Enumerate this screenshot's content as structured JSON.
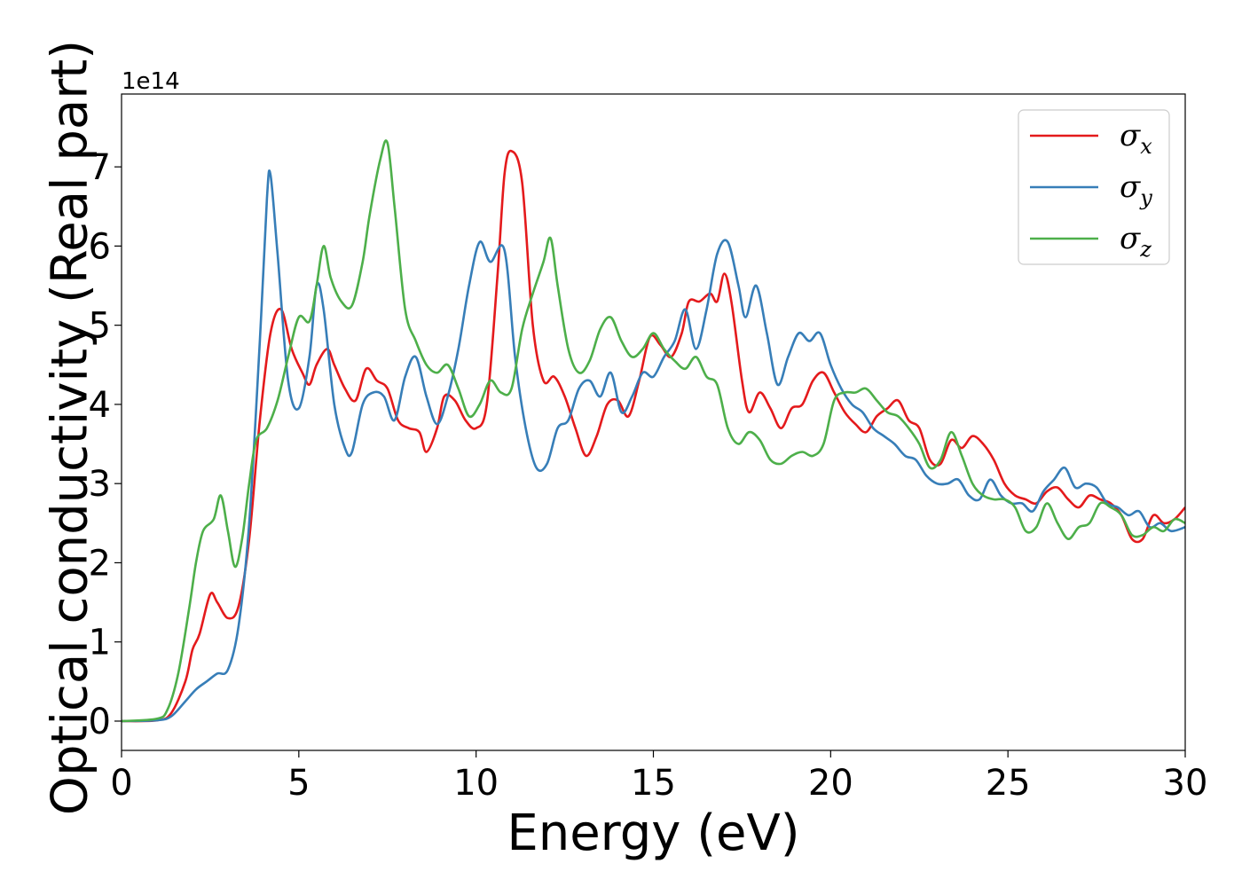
{
  "chart_data": {
    "type": "line",
    "title": "",
    "xlabel": "Energy (eV)",
    "ylabel": "Optical conductivity (Real part)",
    "y_offset_label": "1e14",
    "xlim": [
      0,
      30
    ],
    "ylim": [
      -0.37,
      7.92
    ],
    "y_multiplier": 100000000000000.0,
    "x_ticks": [
      0,
      5,
      10,
      15,
      20,
      25,
      30
    ],
    "y_ticks": [
      0,
      1,
      2,
      3,
      4,
      5,
      6,
      7
    ],
    "grid": false,
    "legend_position": "top-right",
    "series": [
      {
        "name": "σx",
        "symbol": "σ",
        "subscript": "x",
        "color": "#e41a1c",
        "points": [
          [
            0,
            0
          ],
          [
            1,
            0.01
          ],
          [
            1.4,
            0.1
          ],
          [
            1.8,
            0.5
          ],
          [
            2.0,
            0.9
          ],
          [
            2.2,
            1.1
          ],
          [
            2.5,
            1.6
          ],
          [
            2.7,
            1.5
          ],
          [
            3.0,
            1.3
          ],
          [
            3.3,
            1.45
          ],
          [
            3.6,
            2.3
          ],
          [
            3.9,
            3.8
          ],
          [
            4.2,
            4.9
          ],
          [
            4.5,
            5.2
          ],
          [
            4.8,
            4.7
          ],
          [
            5.1,
            4.4
          ],
          [
            5.3,
            4.25
          ],
          [
            5.5,
            4.5
          ],
          [
            5.8,
            4.7
          ],
          [
            6.0,
            4.5
          ],
          [
            6.3,
            4.2
          ],
          [
            6.6,
            4.05
          ],
          [
            6.9,
            4.45
          ],
          [
            7.2,
            4.3
          ],
          [
            7.5,
            4.2
          ],
          [
            7.8,
            3.8
          ],
          [
            8.1,
            3.7
          ],
          [
            8.4,
            3.65
          ],
          [
            8.6,
            3.4
          ],
          [
            8.9,
            3.7
          ],
          [
            9.1,
            4.1
          ],
          [
            9.4,
            4.05
          ],
          [
            9.7,
            3.8
          ],
          [
            10.0,
            3.7
          ],
          [
            10.3,
            4.0
          ],
          [
            10.6,
            5.6
          ],
          [
            10.8,
            6.9
          ],
          [
            11.0,
            7.2
          ],
          [
            11.3,
            6.8
          ],
          [
            11.6,
            5.0
          ],
          [
            11.9,
            4.3
          ],
          [
            12.2,
            4.35
          ],
          [
            12.5,
            4.1
          ],
          [
            12.8,
            3.7
          ],
          [
            13.1,
            3.35
          ],
          [
            13.4,
            3.6
          ],
          [
            13.7,
            4.0
          ],
          [
            14.0,
            4.05
          ],
          [
            14.3,
            3.85
          ],
          [
            14.6,
            4.3
          ],
          [
            14.9,
            4.85
          ],
          [
            15.2,
            4.75
          ],
          [
            15.5,
            4.6
          ],
          [
            15.8,
            4.9
          ],
          [
            16.0,
            5.3
          ],
          [
            16.3,
            5.3
          ],
          [
            16.6,
            5.4
          ],
          [
            16.8,
            5.3
          ],
          [
            17.0,
            5.65
          ],
          [
            17.2,
            5.3
          ],
          [
            17.5,
            4.3
          ],
          [
            17.7,
            3.9
          ],
          [
            18.0,
            4.15
          ],
          [
            18.3,
            3.95
          ],
          [
            18.6,
            3.7
          ],
          [
            18.9,
            3.95
          ],
          [
            19.2,
            4.0
          ],
          [
            19.5,
            4.3
          ],
          [
            19.8,
            4.4
          ],
          [
            20.1,
            4.15
          ],
          [
            20.4,
            3.9
          ],
          [
            20.7,
            3.75
          ],
          [
            21.0,
            3.65
          ],
          [
            21.3,
            3.85
          ],
          [
            21.6,
            3.95
          ],
          [
            21.9,
            4.05
          ],
          [
            22.2,
            3.8
          ],
          [
            22.5,
            3.7
          ],
          [
            22.8,
            3.3
          ],
          [
            23.1,
            3.25
          ],
          [
            23.4,
            3.55
          ],
          [
            23.7,
            3.45
          ],
          [
            24.0,
            3.6
          ],
          [
            24.3,
            3.5
          ],
          [
            24.6,
            3.3
          ],
          [
            24.9,
            3.0
          ],
          [
            25.2,
            2.85
          ],
          [
            25.5,
            2.8
          ],
          [
            25.8,
            2.75
          ],
          [
            26.1,
            2.9
          ],
          [
            26.4,
            2.95
          ],
          [
            26.7,
            2.8
          ],
          [
            27.0,
            2.7
          ],
          [
            27.3,
            2.85
          ],
          [
            27.6,
            2.8
          ],
          [
            27.9,
            2.75
          ],
          [
            28.2,
            2.6
          ],
          [
            28.5,
            2.3
          ],
          [
            28.8,
            2.3
          ],
          [
            29.1,
            2.6
          ],
          [
            29.4,
            2.5
          ],
          [
            29.7,
            2.55
          ],
          [
            30.0,
            2.7
          ]
        ]
      },
      {
        "name": "σy",
        "symbol": "σ",
        "subscript": "y",
        "color": "#377eb8",
        "points": [
          [
            0,
            0
          ],
          [
            1,
            0.01
          ],
          [
            1.4,
            0.06
          ],
          [
            1.8,
            0.25
          ],
          [
            2.1,
            0.4
          ],
          [
            2.4,
            0.5
          ],
          [
            2.7,
            0.6
          ],
          [
            3.0,
            0.65
          ],
          [
            3.3,
            1.2
          ],
          [
            3.6,
            2.5
          ],
          [
            3.9,
            4.8
          ],
          [
            4.1,
            6.6
          ],
          [
            4.2,
            6.9
          ],
          [
            4.4,
            5.9
          ],
          [
            4.7,
            4.3
          ],
          [
            5.0,
            3.95
          ],
          [
            5.3,
            4.6
          ],
          [
            5.5,
            5.5
          ],
          [
            5.7,
            5.2
          ],
          [
            6.0,
            4.0
          ],
          [
            6.3,
            3.45
          ],
          [
            6.5,
            3.4
          ],
          [
            6.8,
            4.0
          ],
          [
            7.1,
            4.15
          ],
          [
            7.4,
            4.1
          ],
          [
            7.7,
            3.8
          ],
          [
            8.0,
            4.35
          ],
          [
            8.3,
            4.6
          ],
          [
            8.6,
            4.1
          ],
          [
            8.9,
            3.75
          ],
          [
            9.2,
            4.1
          ],
          [
            9.5,
            4.7
          ],
          [
            9.8,
            5.5
          ],
          [
            10.1,
            6.05
          ],
          [
            10.4,
            5.8
          ],
          [
            10.8,
            5.95
          ],
          [
            11.1,
            4.6
          ],
          [
            11.4,
            3.7
          ],
          [
            11.7,
            3.2
          ],
          [
            12.0,
            3.25
          ],
          [
            12.3,
            3.7
          ],
          [
            12.6,
            3.8
          ],
          [
            12.9,
            4.2
          ],
          [
            13.2,
            4.3
          ],
          [
            13.5,
            4.1
          ],
          [
            13.8,
            4.4
          ],
          [
            14.1,
            3.9
          ],
          [
            14.4,
            4.1
          ],
          [
            14.7,
            4.4
          ],
          [
            15.0,
            4.35
          ],
          [
            15.3,
            4.6
          ],
          [
            15.6,
            4.8
          ],
          [
            15.9,
            5.2
          ],
          [
            16.2,
            4.7
          ],
          [
            16.5,
            5.2
          ],
          [
            16.8,
            5.9
          ],
          [
            17.1,
            6.05
          ],
          [
            17.4,
            5.5
          ],
          [
            17.6,
            5.1
          ],
          [
            17.9,
            5.5
          ],
          [
            18.2,
            4.9
          ],
          [
            18.5,
            4.25
          ],
          [
            18.8,
            4.6
          ],
          [
            19.1,
            4.9
          ],
          [
            19.4,
            4.8
          ],
          [
            19.7,
            4.9
          ],
          [
            20.0,
            4.5
          ],
          [
            20.3,
            4.2
          ],
          [
            20.6,
            4.0
          ],
          [
            20.9,
            3.9
          ],
          [
            21.2,
            3.7
          ],
          [
            21.5,
            3.6
          ],
          [
            21.8,
            3.5
          ],
          [
            22.1,
            3.35
          ],
          [
            22.4,
            3.3
          ],
          [
            22.7,
            3.1
          ],
          [
            23.0,
            3.0
          ],
          [
            23.3,
            3.0
          ],
          [
            23.6,
            3.05
          ],
          [
            23.9,
            2.85
          ],
          [
            24.2,
            2.8
          ],
          [
            24.5,
            3.05
          ],
          [
            24.8,
            2.85
          ],
          [
            25.1,
            2.75
          ],
          [
            25.4,
            2.75
          ],
          [
            25.7,
            2.65
          ],
          [
            26.0,
            2.9
          ],
          [
            26.3,
            3.05
          ],
          [
            26.6,
            3.2
          ],
          [
            26.9,
            2.95
          ],
          [
            27.2,
            3.0
          ],
          [
            27.5,
            2.95
          ],
          [
            27.8,
            2.75
          ],
          [
            28.1,
            2.7
          ],
          [
            28.4,
            2.6
          ],
          [
            28.7,
            2.65
          ],
          [
            29.0,
            2.45
          ],
          [
            29.3,
            2.5
          ],
          [
            29.6,
            2.4
          ],
          [
            30.0,
            2.45
          ]
        ]
      },
      {
        "name": "σz",
        "symbol": "σ",
        "subscript": "z",
        "color": "#4daf4a",
        "points": [
          [
            0,
            0
          ],
          [
            1,
            0.03
          ],
          [
            1.3,
            0.15
          ],
          [
            1.6,
            0.6
          ],
          [
            1.9,
            1.4
          ],
          [
            2.1,
            2.0
          ],
          [
            2.3,
            2.4
          ],
          [
            2.6,
            2.55
          ],
          [
            2.8,
            2.85
          ],
          [
            3.0,
            2.4
          ],
          [
            3.2,
            1.95
          ],
          [
            3.4,
            2.3
          ],
          [
            3.6,
            3.0
          ],
          [
            3.8,
            3.55
          ],
          [
            4.1,
            3.7
          ],
          [
            4.4,
            4.05
          ],
          [
            4.7,
            4.6
          ],
          [
            5.0,
            5.1
          ],
          [
            5.3,
            5.05
          ],
          [
            5.5,
            5.5
          ],
          [
            5.7,
            6.0
          ],
          [
            5.9,
            5.6
          ],
          [
            6.2,
            5.3
          ],
          [
            6.5,
            5.25
          ],
          [
            6.8,
            5.8
          ],
          [
            7.0,
            6.4
          ],
          [
            7.3,
            7.1
          ],
          [
            7.5,
            7.3
          ],
          [
            7.7,
            6.5
          ],
          [
            8.0,
            5.2
          ],
          [
            8.3,
            4.8
          ],
          [
            8.6,
            4.5
          ],
          [
            8.9,
            4.4
          ],
          [
            9.2,
            4.5
          ],
          [
            9.5,
            4.2
          ],
          [
            9.8,
            3.85
          ],
          [
            10.1,
            4.0
          ],
          [
            10.4,
            4.3
          ],
          [
            10.7,
            4.15
          ],
          [
            11.0,
            4.2
          ],
          [
            11.3,
            4.95
          ],
          [
            11.6,
            5.4
          ],
          [
            11.9,
            5.8
          ],
          [
            12.1,
            6.1
          ],
          [
            12.3,
            5.5
          ],
          [
            12.6,
            4.7
          ],
          [
            12.9,
            4.4
          ],
          [
            13.2,
            4.55
          ],
          [
            13.5,
            4.95
          ],
          [
            13.8,
            5.1
          ],
          [
            14.1,
            4.8
          ],
          [
            14.4,
            4.6
          ],
          [
            14.7,
            4.7
          ],
          [
            15.0,
            4.9
          ],
          [
            15.3,
            4.7
          ],
          [
            15.6,
            4.55
          ],
          [
            15.9,
            4.45
          ],
          [
            16.2,
            4.6
          ],
          [
            16.5,
            4.35
          ],
          [
            16.8,
            4.25
          ],
          [
            17.1,
            3.7
          ],
          [
            17.4,
            3.5
          ],
          [
            17.7,
            3.65
          ],
          [
            18.0,
            3.55
          ],
          [
            18.3,
            3.3
          ],
          [
            18.6,
            3.25
          ],
          [
            18.9,
            3.35
          ],
          [
            19.2,
            3.4
          ],
          [
            19.5,
            3.35
          ],
          [
            19.8,
            3.5
          ],
          [
            20.1,
            4.05
          ],
          [
            20.4,
            4.15
          ],
          [
            20.7,
            4.15
          ],
          [
            21.0,
            4.2
          ],
          [
            21.3,
            4.05
          ],
          [
            21.6,
            3.9
          ],
          [
            21.9,
            3.85
          ],
          [
            22.2,
            3.7
          ],
          [
            22.5,
            3.5
          ],
          [
            22.8,
            3.2
          ],
          [
            23.1,
            3.3
          ],
          [
            23.4,
            3.65
          ],
          [
            23.7,
            3.35
          ],
          [
            24.0,
            3.0
          ],
          [
            24.3,
            2.85
          ],
          [
            24.6,
            2.8
          ],
          [
            24.9,
            2.8
          ],
          [
            25.2,
            2.7
          ],
          [
            25.5,
            2.4
          ],
          [
            25.8,
            2.45
          ],
          [
            26.1,
            2.75
          ],
          [
            26.4,
            2.5
          ],
          [
            26.7,
            2.3
          ],
          [
            27.0,
            2.45
          ],
          [
            27.3,
            2.5
          ],
          [
            27.6,
            2.75
          ],
          [
            27.9,
            2.7
          ],
          [
            28.2,
            2.6
          ],
          [
            28.5,
            2.35
          ],
          [
            28.8,
            2.35
          ],
          [
            29.1,
            2.45
          ],
          [
            29.4,
            2.4
          ],
          [
            29.7,
            2.55
          ],
          [
            30.0,
            2.5
          ]
        ]
      }
    ]
  }
}
